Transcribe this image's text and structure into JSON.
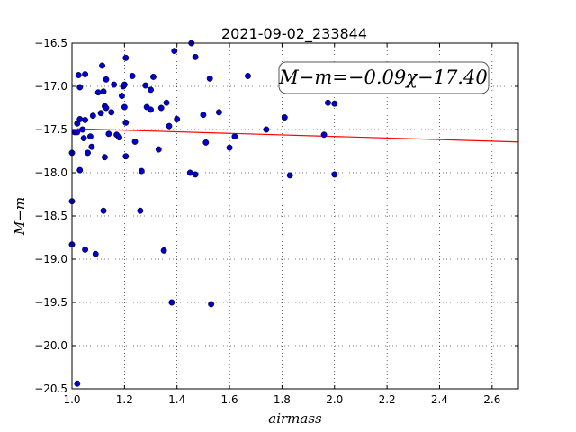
{
  "chart_data": {
    "type": "scatter",
    "title": "2021-09-02_233844",
    "xlabel": "airmass",
    "ylabel": "M−m",
    "xlim": [
      1.0,
      2.7
    ],
    "ylim": [
      -16.5,
      -20.5
    ],
    "y_inverted": true,
    "grid": true,
    "x_ticks": [
      1.0,
      1.2,
      1.4,
      1.6,
      1.8,
      2.0,
      2.2,
      2.4,
      2.6
    ],
    "x_tick_labels": [
      "1.0",
      "1.2",
      "1.4",
      "1.6",
      "1.8",
      "2.0",
      "2.2",
      "2.4",
      "2.6"
    ],
    "y_ticks": [
      -16.5,
      -17.0,
      -17.5,
      -18.0,
      -18.5,
      -19.0,
      -19.5,
      -20.0,
      -20.5
    ],
    "y_tick_labels": [
      "−16.5",
      "−17.0",
      "−17.5",
      "−18.0",
      "−18.5",
      "−19.0",
      "−19.5",
      "−20.0",
      "−20.5"
    ],
    "annotation": "M−m=−0.09χ−17.40",
    "point_color": "#0000cc",
    "fit_color": "#ff0000",
    "fit": {
      "slope": -0.09,
      "intercept": -17.4,
      "x_range": [
        1.02,
        2.7
      ]
    },
    "points": [
      [
        1.0,
        -17.77
      ],
      [
        1.0,
        -18.33
      ],
      [
        1.0,
        -18.83
      ],
      [
        1.01,
        -17.53
      ],
      [
        1.02,
        -17.53
      ],
      [
        1.02,
        -17.43
      ],
      [
        1.02,
        -20.44
      ],
      [
        1.025,
        -16.87
      ],
      [
        1.03,
        -17.01
      ],
      [
        1.03,
        -17.38
      ],
      [
        1.03,
        -17.97
      ],
      [
        1.04,
        -17.5
      ],
      [
        1.045,
        -17.6
      ],
      [
        1.05,
        -16.86
      ],
      [
        1.05,
        -17.39
      ],
      [
        1.05,
        -18.89
      ],
      [
        1.06,
        -17.77
      ],
      [
        1.07,
        -17.58
      ],
      [
        1.075,
        -17.7
      ],
      [
        1.08,
        -17.34
      ],
      [
        1.09,
        -18.94
      ],
      [
        1.1,
        -17.07
      ],
      [
        1.11,
        -17.31
      ],
      [
        1.115,
        -16.76
      ],
      [
        1.12,
        -17.06
      ],
      [
        1.12,
        -18.44
      ],
      [
        1.125,
        -17.23
      ],
      [
        1.125,
        -17.82
      ],
      [
        1.13,
        -17.25
      ],
      [
        1.13,
        -16.92
      ],
      [
        1.14,
        -17.55
      ],
      [
        1.15,
        -17.3
      ],
      [
        1.16,
        -16.98
      ],
      [
        1.17,
        -17.56
      ],
      [
        1.18,
        -17.59
      ],
      [
        1.19,
        -17.11
      ],
      [
        1.195,
        -17.0
      ],
      [
        1.2,
        -16.98
      ],
      [
        1.2,
        -17.24
      ],
      [
        1.205,
        -17.42
      ],
      [
        1.205,
        -17.81
      ],
      [
        1.205,
        -16.67
      ],
      [
        1.23,
        -16.88
      ],
      [
        1.24,
        -17.64
      ],
      [
        1.26,
        -18.44
      ],
      [
        1.265,
        -17.98
      ],
      [
        1.28,
        -16.99
      ],
      [
        1.285,
        -17.24
      ],
      [
        1.3,
        -17.27
      ],
      [
        1.3,
        -17.04
      ],
      [
        1.31,
        -16.89
      ],
      [
        1.33,
        -17.73
      ],
      [
        1.34,
        -17.25
      ],
      [
        1.35,
        -18.9
      ],
      [
        1.36,
        -17.19
      ],
      [
        1.37,
        -17.46
      ],
      [
        1.38,
        -19.5
      ],
      [
        1.39,
        -16.59
      ],
      [
        1.4,
        -17.38
      ],
      [
        1.45,
        -18.0
      ],
      [
        1.455,
        -16.5
      ],
      [
        1.47,
        -18.02
      ],
      [
        1.47,
        -16.66
      ],
      [
        1.5,
        -17.33
      ],
      [
        1.51,
        -17.65
      ],
      [
        1.525,
        -16.91
      ],
      [
        1.53,
        -19.52
      ],
      [
        1.56,
        -17.3
      ],
      [
        1.6,
        -17.71
      ],
      [
        1.62,
        -17.58
      ],
      [
        1.67,
        -16.88
      ],
      [
        1.74,
        -17.5
      ],
      [
        1.81,
        -17.36
      ],
      [
        1.83,
        -18.03
      ],
      [
        1.96,
        -17.56
      ],
      [
        1.975,
        -17.19
      ],
      [
        2.0,
        -17.2
      ],
      [
        2.0,
        -18.02
      ]
    ]
  }
}
